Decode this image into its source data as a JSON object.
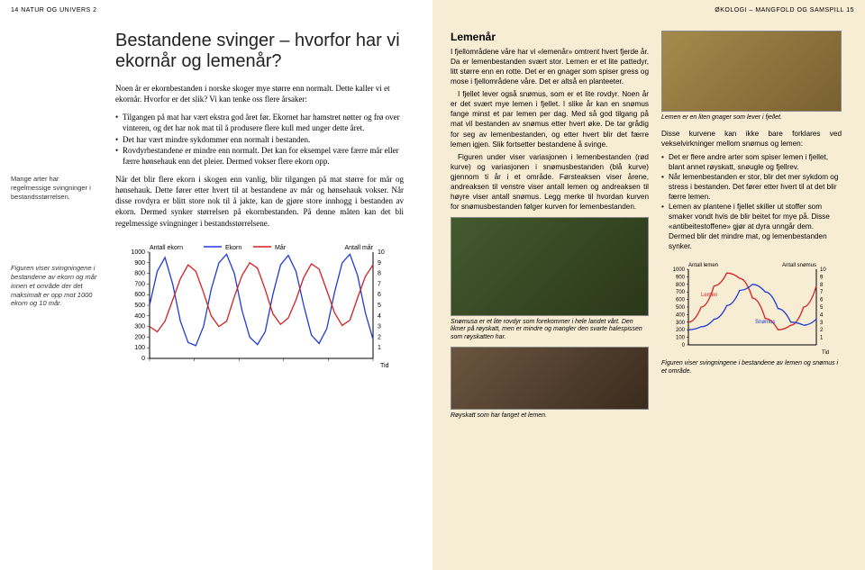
{
  "running": {
    "left": "14 NATUR OG UNIVERS 2",
    "right": "ØKOLOGI – MANGFOLD OG SAMSPILL 15"
  },
  "left": {
    "title": "Bestandene svinger – hvorfor har vi ekornår og lemenår?",
    "margin_note1": "Mange arter har regelmessige svingninger i bestandsstørrelsen.",
    "margin_note2": "Figuren viser svingningene i bestandene av ekorn og mår innen et område der det maksimalt er opp mot 1000 ekorn og 10 mår.",
    "lead": "Noen år er ekornbestanden i norske skoger mye større enn normalt. Dette kaller vi et ekornår. Hvorfor er det slik? Vi kan tenke oss flere årsaker:",
    "bullets": [
      "Tilgangen på mat har vært ekstra god året før. Ekornet har hamstret nøtter og frø over vinteren, og det har nok mat til å produsere flere kull med unger dette året.",
      "Det har vært mindre sykdommer enn normalt i bestanden.",
      "Rovdyrbestandene er mindre enn normalt. Det kan for eksempel være færre mår eller færre hønsehauk enn det pleier. Dermed vokser flere ekorn opp."
    ],
    "para2": "Når det blir flere ekorn i skogen enn vanlig, blir tilgangen på mat større for mår og hønsehauk. Dette fører etter hvert til at bestandene av mår og hønsehauk vokser. Når disse rovdyra er blitt store nok til å jakte, kan de gjøre store innhogg i bestanden av ekorn. Dermed synker størrelsen på ekornbestanden. På denne måten kan det bli regelmessige svingninger i bestandsstørrelsene.",
    "chart": {
      "type": "line",
      "y1_label": "Antall ekorn",
      "y2_label": "Antall mår",
      "x_label": "Tid",
      "legend": [
        "Ekorn",
        "Mår"
      ],
      "legend_colors": [
        "#1f3bd6",
        "#d61f1f"
      ],
      "y1_ticks": [
        0,
        100,
        200,
        300,
        400,
        500,
        600,
        700,
        800,
        900,
        1000
      ],
      "y2_ticks": [
        1,
        2,
        3,
        4,
        5,
        6,
        7,
        8,
        9,
        10
      ],
      "ekorn_y": [
        500,
        820,
        950,
        700,
        350,
        150,
        120,
        300,
        650,
        900,
        980,
        800,
        450,
        200,
        130,
        250,
        600,
        880,
        970,
        820,
        500,
        220,
        140,
        280,
        620,
        900,
        980,
        780,
        430,
        180
      ],
      "mar_y": [
        3.0,
        2.5,
        3.5,
        5.5,
        7.5,
        8.8,
        8.2,
        6.2,
        4.0,
        3.0,
        3.5,
        5.8,
        7.8,
        9.0,
        8.5,
        6.5,
        4.2,
        3.2,
        3.8,
        5.5,
        7.6,
        8.9,
        8.4,
        6.4,
        4.3,
        3.1,
        3.6,
        5.7,
        7.7,
        8.8
      ],
      "axis_color": "#000000",
      "ekorn_color": "#1f3bd6",
      "mar_color": "#d61f1f",
      "background": "#ffffff",
      "fontsize": 7
    }
  },
  "right": {
    "section_title": "Lemenår",
    "para1": "I fjellområdene våre har vi «lemenår» omtrent hvert fjerde år. Da er lemenbestanden svært stor. Lemen er et lite pattedyr, litt større enn en rotte. Det er en gnager som spiser gress og mose i fjellområdene våre. Det er altså en planteeter.",
    "para2": "I fjellet lever også snømus, som er et lite rovdyr. Noen år er det svært mye lemen i fjellet. I slike år kan en snømus fange minst et par lemen per dag. Med så god tilgang på mat vil bestanden av snømus etter hvert øke. De tar grådig for seg av lemenbestanden, og etter hvert blir det færre lemen igjen. Slik fortsetter bestandene å svinge.",
    "para3": "Figuren under viser variasjonen i lemenbestanden (rød kurve) og variasjonen i snømusbestanden (blå kurve) gjennom ti år i et område. Førsteaksen viser årene, andreaksen til venstre viser antall lemen og andreaksen til høyre viser antall snømus. Legg merke til hvordan kurven for snømusbestanden følger kurven for lemenbestanden.",
    "img_caption1": "Lemen er en liten gnager som lever i fjellet.",
    "img_caption2": "Snømusa er et lite rovdyr som forekommer i hele landet vårt. Den likner på røyskatt, men er mindre og mangler den svarte halespissen som røyskatten har.",
    "img_caption3": "Røyskatt som har fanget et lemen.",
    "bullets_intro": "Disse kurvene kan ikke bare forklares ved vekselvirkninger mellom snømus og lemen:",
    "bullets": [
      "Det er flere andre arter som spiser lemen i fjellet, blant annet røyskatt, snøugle og fjellrev.",
      "Når lemenbestanden er stor, blir det mer sykdom og stress i bestanden. Det fører etter hvert til at det blir færre lemen.",
      "Lemen av plantene i fjellet skiller ut stoffer som smaker vondt hvis de blir beitet for mye på. Disse «antibeitestoffene» gjør at dyra unngår dem. Dermed blir det mindre mat, og lemenbestanden synker."
    ],
    "mini_chart": {
      "type": "line",
      "y1_label": "Antall lemen",
      "y2_label": "Antall snømus",
      "legend": [
        "Lemen",
        "Snømus"
      ],
      "x_label": "Tid",
      "y1_ticks": [
        0,
        100,
        200,
        300,
        400,
        500,
        600,
        700,
        800,
        900,
        1000
      ],
      "y2_ticks": [
        1,
        2,
        3,
        4,
        5,
        6,
        7,
        8,
        9,
        10
      ],
      "lemen_y": [
        300,
        500,
        780,
        950,
        880,
        620,
        350,
        200,
        260,
        500,
        780
      ],
      "snomus_y": [
        2.0,
        2.4,
        3.4,
        5.2,
        7.2,
        8.0,
        7.0,
        4.8,
        3.0,
        2.6,
        3.4
      ],
      "lemen_color": "#d61f1f",
      "snomus_color": "#1f3bd6",
      "axis_color": "#000000",
      "fontsize": 7
    },
    "mini_caption": "Figuren viser svingningene i bestandene av lemen og snømus i et område."
  }
}
